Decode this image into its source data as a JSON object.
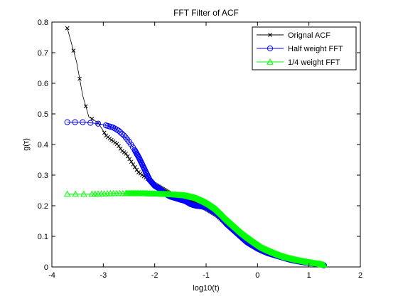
{
  "chart_data": {
    "type": "line",
    "title": "FFT Filter of ACF",
    "xlabel": "log10(t)",
    "ylabel": "g(τ)",
    "xlim": [
      -4,
      2
    ],
    "ylim": [
      0,
      0.8
    ],
    "xticks": [
      -4,
      -3,
      -2,
      -1,
      0,
      1,
      2
    ],
    "xtick_labels": [
      "-4",
      "-3",
      "-2",
      "-1",
      "0",
      "1",
      "2"
    ],
    "yticks": [
      0,
      0.1,
      0.2,
      0.3,
      0.4,
      0.5,
      0.6,
      0.7,
      0.8
    ],
    "ytick_labels": [
      "0",
      "0.1",
      "0.2",
      "0.3",
      "0.4",
      "0.5",
      "0.6",
      "0.7",
      "0.8"
    ],
    "grid": false,
    "legend_position": "top-right",
    "series": [
      {
        "name": "Orignal ACF",
        "color": "#000000",
        "marker": "x",
        "x": [
          -3.7,
          -3.52,
          -3.4,
          -3.28,
          -3.18,
          -3.1,
          -3.02,
          -2.95,
          -2.88,
          -2.8,
          -2.72,
          -2.64,
          -2.56,
          -2.48,
          -2.4,
          -2.32,
          -2.24,
          -2.16,
          -2.08,
          -2.0,
          -1.9,
          -1.8,
          -1.7,
          -1.6,
          -1.5,
          -1.4,
          -1.3,
          -1.2,
          -1.1,
          -1.0,
          -0.9,
          -0.8,
          -0.7,
          -0.6,
          -0.5,
          -0.4,
          -0.3,
          -0.2,
          -0.1,
          0.0,
          0.1,
          0.2,
          0.3,
          0.4,
          0.5,
          0.6,
          0.7,
          0.8,
          0.9,
          1.0,
          1.1,
          1.2,
          1.3
        ],
        "y": [
          0.78,
          0.67,
          0.56,
          0.49,
          0.48,
          0.47,
          0.45,
          0.43,
          0.42,
          0.41,
          0.4,
          0.38,
          0.37,
          0.35,
          0.33,
          0.31,
          0.3,
          0.29,
          0.28,
          0.27,
          0.26,
          0.25,
          0.24,
          0.23,
          0.225,
          0.22,
          0.215,
          0.21,
          0.2,
          0.19,
          0.18,
          0.17,
          0.155,
          0.14,
          0.125,
          0.11,
          0.095,
          0.08,
          0.07,
          0.06,
          0.052,
          0.045,
          0.04,
          0.035,
          0.03,
          0.025,
          0.021,
          0.018,
          0.015,
          0.013,
          0.011,
          0.009,
          0.005
        ]
      },
      {
        "name": "Half weight FFT",
        "color": "#0000ff",
        "marker": "o",
        "x": [
          -3.7,
          -3.4,
          -3.2,
          -3.1,
          -3.0,
          -2.9,
          -2.8,
          -2.7,
          -2.6,
          -2.5,
          -2.4,
          -2.3,
          -2.2,
          -2.1,
          -2.0,
          -1.9,
          -1.8,
          -1.7,
          -1.6,
          -1.5,
          -1.4,
          -1.3,
          -1.2,
          -1.1,
          -1.0,
          -0.9,
          -0.8,
          -0.7,
          -0.6,
          -0.5,
          -0.4,
          -0.3,
          -0.2,
          -0.1,
          0.0,
          0.1,
          0.2,
          0.3,
          0.4,
          0.5,
          0.6,
          0.7,
          0.8,
          0.9,
          1.0,
          1.1,
          1.2,
          1.3
        ],
        "y": [
          0.473,
          0.473,
          0.47,
          0.468,
          0.465,
          0.46,
          0.455,
          0.445,
          0.43,
          0.41,
          0.385,
          0.355,
          0.32,
          0.285,
          0.265,
          0.255,
          0.24,
          0.23,
          0.225,
          0.22,
          0.215,
          0.205,
          0.2,
          0.198,
          0.195,
          0.185,
          0.175,
          0.16,
          0.14,
          0.125,
          0.11,
          0.095,
          0.08,
          0.07,
          0.06,
          0.052,
          0.045,
          0.04,
          0.035,
          0.03,
          0.025,
          0.021,
          0.018,
          0.015,
          0.013,
          0.011,
          0.009,
          0.005
        ]
      },
      {
        "name": "1/4 weight FFT",
        "color": "#00ff00",
        "marker": "^",
        "x": [
          -3.7,
          -3.4,
          -3.2,
          -3.0,
          -2.8,
          -2.6,
          -2.4,
          -2.2,
          -2.0,
          -1.8,
          -1.6,
          -1.4,
          -1.2,
          -1.1,
          -1.0,
          -0.9,
          -0.8,
          -0.7,
          -0.6,
          -0.5,
          -0.4,
          -0.3,
          -0.2,
          -0.1,
          0.0,
          0.1,
          0.2,
          0.3,
          0.4,
          0.5,
          0.6,
          0.7,
          0.8,
          0.9,
          1.0,
          1.1,
          1.2,
          1.3
        ],
        "y": [
          0.238,
          0.238,
          0.238,
          0.239,
          0.24,
          0.24,
          0.24,
          0.24,
          0.239,
          0.238,
          0.236,
          0.233,
          0.225,
          0.218,
          0.21,
          0.2,
          0.188,
          0.172,
          0.155,
          0.14,
          0.125,
          0.11,
          0.097,
          0.085,
          0.073,
          0.062,
          0.054,
          0.047,
          0.04,
          0.034,
          0.029,
          0.025,
          0.021,
          0.018,
          0.015,
          0.012,
          0.01,
          0.006
        ]
      }
    ]
  }
}
